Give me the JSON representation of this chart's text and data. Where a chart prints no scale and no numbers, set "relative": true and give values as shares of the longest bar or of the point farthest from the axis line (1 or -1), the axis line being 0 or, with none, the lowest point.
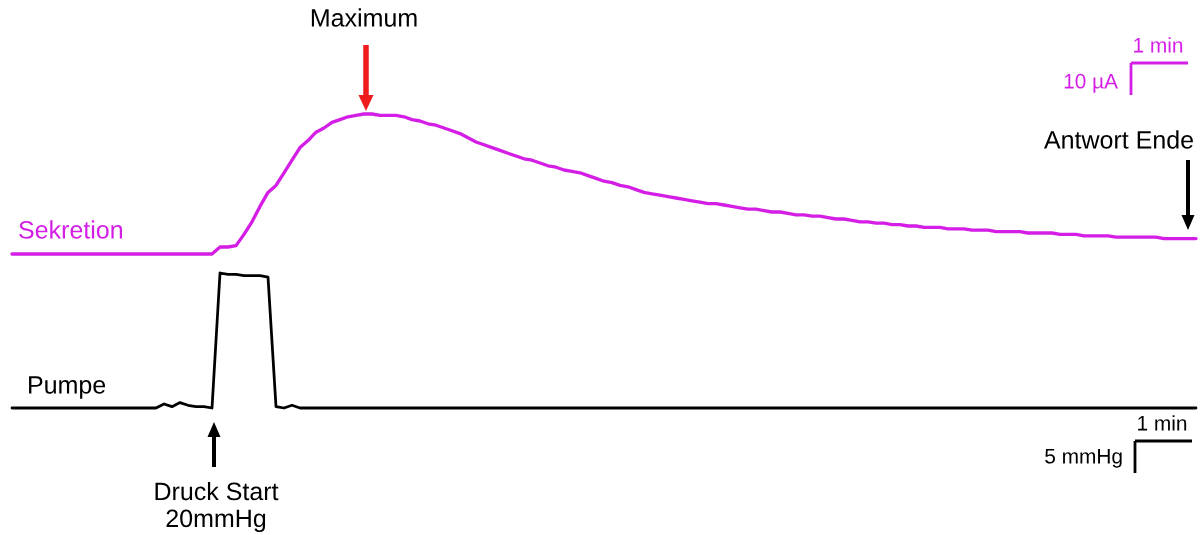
{
  "chart_data": [
    {
      "type": "line",
      "relative": true,
      "categories": [
        null,
        null,
        null,
        null,
        null,
        null,
        null,
        null,
        null,
        null,
        null,
        null,
        null,
        null,
        null,
        null,
        null,
        null,
        null,
        null,
        null,
        null,
        null,
        null,
        null,
        null,
        null,
        null,
        null,
        null,
        null,
        null,
        null,
        null,
        null,
        null,
        null,
        null,
        null,
        null,
        null,
        null,
        null,
        null,
        null,
        null,
        null,
        null,
        null,
        null,
        null,
        null,
        null,
        null,
        null,
        null,
        null,
        null,
        null,
        null,
        null,
        null,
        null,
        null,
        null,
        null,
        null,
        null,
        null,
        null,
        null,
        null,
        null,
        null,
        null,
        null,
        null,
        null,
        null,
        null,
        null,
        null,
        null,
        null,
        null,
        null,
        null,
        null,
        null,
        null,
        null,
        null,
        null,
        null,
        null,
        null,
        null,
        null,
        null,
        null,
        null,
        null,
        null,
        null,
        null,
        null,
        null,
        null,
        null,
        null,
        null,
        null,
        null,
        null,
        null,
        null,
        null,
        null,
        null,
        null,
        null,
        null,
        null,
        null,
        null,
        null,
        null,
        null,
        null,
        null,
        null,
        null,
        null,
        null,
        null,
        null,
        null,
        null,
        null,
        null,
        null,
        null,
        null,
        null,
        null,
        null,
        null,
        null,
        null
      ],
      "series": [
        {
          "name": "Sekretion",
          "color": "#d41ee6",
          "values": [
            0,
            0,
            0,
            0,
            0,
            0,
            0,
            0,
            0,
            0,
            0,
            0,
            0,
            0,
            0,
            0,
            0,
            0,
            0,
            0,
            0,
            0,
            0,
            0,
            0,
            0,
            0.05,
            0.05,
            0.06,
            0.14,
            0.23,
            0.34,
            0.44,
            0.49,
            0.58,
            0.67,
            0.76,
            0.81,
            0.87,
            0.9,
            0.94,
            0.96,
            0.98,
            0.99,
            1,
            1,
            0.99,
            0.99,
            0.99,
            0.98,
            0.96,
            0.95,
            0.93,
            0.92,
            0.9,
            0.88,
            0.86,
            0.83,
            0.8,
            0.78,
            0.76,
            0.74,
            0.72,
            0.7,
            0.68,
            0.67,
            0.65,
            0.63,
            0.62,
            0.6,
            0.59,
            0.58,
            0.56,
            0.54,
            0.52,
            0.51,
            0.49,
            0.48,
            0.46,
            0.44,
            0.43,
            0.42,
            0.41,
            0.4,
            0.39,
            0.38,
            0.37,
            0.36,
            0.36,
            0.35,
            0.34,
            0.33,
            0.32,
            0.32,
            0.31,
            0.3,
            0.3,
            0.29,
            0.28,
            0.28,
            0.27,
            0.27,
            0.26,
            0.25,
            0.25,
            0.24,
            0.23,
            0.23,
            0.22,
            0.22,
            0.21,
            0.21,
            0.2,
            0.2,
            0.19,
            0.19,
            0.19,
            0.18,
            0.18,
            0.18,
            0.17,
            0.17,
            0.17,
            0.16,
            0.16,
            0.16,
            0.16,
            0.15,
            0.15,
            0.15,
            0.15,
            0.14,
            0.14,
            0.14,
            0.13,
            0.13,
            0.13,
            0.13,
            0.12,
            0.12,
            0.12,
            0.12,
            0.12,
            0.12,
            0.11,
            0.11,
            0.11,
            0.11,
            0.11
          ]
        }
      ],
      "annotations": [
        "Maximum",
        "Antwort Ende",
        "1 min",
        "10 µA"
      ]
    },
    {
      "type": "line",
      "relative": true,
      "categories": [
        null,
        null,
        null,
        null,
        null,
        null,
        null,
        null,
        null,
        null,
        null,
        null,
        null,
        null,
        null,
        null,
        null,
        null,
        null,
        null,
        null,
        null,
        null,
        null,
        null,
        null,
        null,
        null,
        null,
        null,
        null,
        null,
        null,
        null,
        null,
        null,
        null,
        null,
        null,
        null,
        null,
        null,
        null,
        null,
        null,
        null,
        null,
        null,
        null,
        null,
        null,
        null,
        null,
        null,
        null,
        null,
        null,
        null,
        null,
        null,
        null,
        null,
        null,
        null,
        null,
        null,
        null,
        null,
        null,
        null,
        null,
        null,
        null,
        null,
        null,
        null,
        null,
        null,
        null,
        null,
        null,
        null,
        null,
        null,
        null,
        null,
        null,
        null,
        null,
        null,
        null,
        null,
        null,
        null,
        null,
        null,
        null,
        null,
        null,
        null,
        null,
        null,
        null,
        null,
        null,
        null,
        null,
        null,
        null,
        null,
        null,
        null,
        null,
        null,
        null,
        null,
        null,
        null,
        null,
        null,
        null,
        null,
        null,
        null,
        null,
        null,
        null,
        null,
        null,
        null,
        null,
        null,
        null,
        null,
        null,
        null,
        null,
        null,
        null,
        null,
        null,
        null,
        null,
        null,
        null,
        null,
        null,
        null,
        null
      ],
      "series": [
        {
          "name": "Pumpe",
          "color": "#000000",
          "values": [
            0,
            0,
            0,
            0,
            0,
            0,
            0,
            0,
            0,
            0,
            0,
            0,
            0,
            0,
            0,
            0,
            0,
            0,
            0,
            0.03,
            0.01,
            0.04,
            0.02,
            0.01,
            0.01,
            0,
            1,
            0.99,
            0.99,
            0.98,
            0.98,
            0.98,
            0.97,
            0.01,
            0,
            0.02,
            0,
            0,
            0,
            0,
            0,
            0,
            0,
            0,
            0,
            0,
            0,
            0,
            0,
            0,
            0,
            0,
            0,
            0,
            0,
            0,
            0,
            0,
            0,
            0,
            0,
            0,
            0,
            0,
            0,
            0,
            0,
            0,
            0,
            0,
            0,
            0,
            0,
            0,
            0,
            0,
            0,
            0,
            0,
            0,
            0,
            0,
            0,
            0,
            0,
            0,
            0,
            0,
            0,
            0,
            0,
            0,
            0,
            0,
            0,
            0,
            0,
            0,
            0,
            0,
            0,
            0,
            0,
            0,
            0,
            0,
            0,
            0,
            0,
            0,
            0,
            0,
            0,
            0,
            0,
            0,
            0,
            0,
            0,
            0,
            0,
            0,
            0,
            0,
            0,
            0,
            0,
            0,
            0,
            0,
            0,
            0,
            0,
            0,
            0,
            0,
            0,
            0,
            0,
            0,
            0,
            0,
            0,
            0,
            0,
            0,
            0,
            0,
            0
          ]
        }
      ],
      "annotations": [
        "Druck Start\n20mmHg",
        "1 min",
        "5 mmHg"
      ]
    }
  ]
}
